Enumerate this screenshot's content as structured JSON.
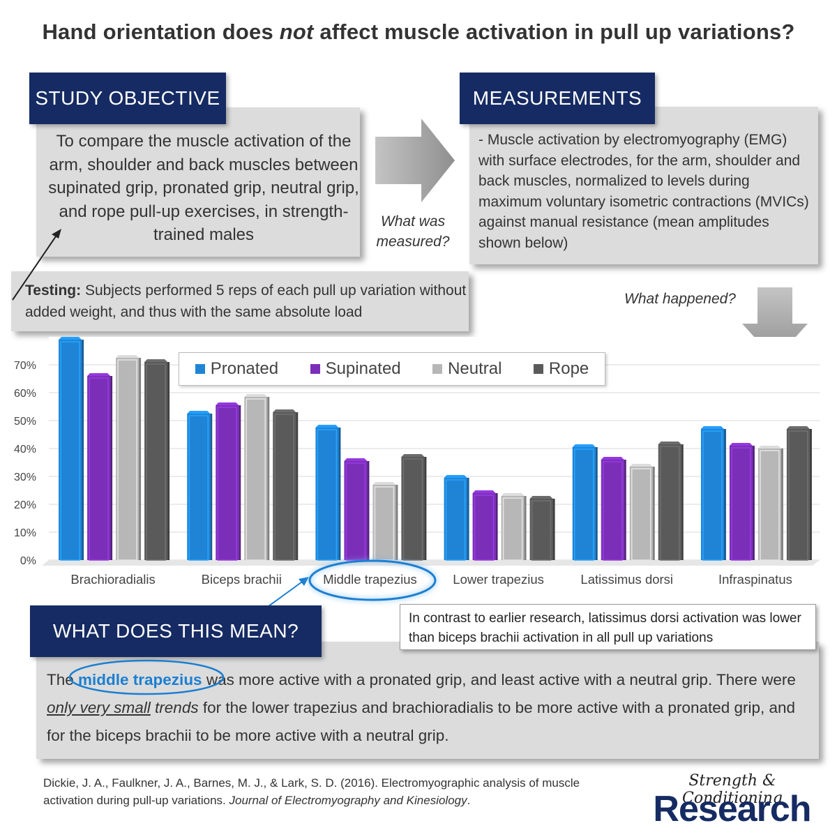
{
  "title": {
    "before": "Hand orientation does ",
    "emph": "not",
    "after": " affect muscle activation in pull up variations?"
  },
  "objective": {
    "heading": "STUDY OBJECTIVE",
    "text": "To  compare the muscle activation of the arm, shoulder and back muscles between supinated grip, pronated grip, neutral grip, and rope pull-up exercises, in strength-trained males"
  },
  "measurements": {
    "heading": "MEASUREMENTS",
    "text": "- Muscle activation by electromyography (EMG) with surface electrodes, for the arm, shoulder and back muscles, normalized to levels during maximum voluntary isometric contractions (MVICs) against manual resistance (mean amplitudes shown below)"
  },
  "questions": {
    "measured": "What was measured?",
    "happened": "What happened?"
  },
  "testing": {
    "label": "Testing:",
    "text": " Subjects performed 5 reps of each pull up variation without added weight, and thus with the same absolute load"
  },
  "chart_data": {
    "type": "bar",
    "categories": [
      "Brachioradialis",
      "Biceps brachii",
      "Middle trapezius",
      "Lower trapezius",
      "Latissimus dorsi",
      "Infraspinatus"
    ],
    "series": [
      {
        "name": "Pronated",
        "color": "#1f84d6",
        "values": [
          79,
          52.5,
          47.5,
          29.5,
          40.5,
          47
        ]
      },
      {
        "name": "Supinated",
        "color": "#7b2fb8",
        "values": [
          66,
          55.5,
          35.5,
          24,
          36,
          41
        ]
      },
      {
        "name": "Neutral",
        "color": "#b7b7b7",
        "values": [
          72.5,
          58.5,
          27,
          23,
          33.5,
          40
        ]
      },
      {
        "name": "Rope",
        "color": "#5a5a5a",
        "values": [
          71,
          53,
          37,
          22,
          41.5,
          47
        ]
      }
    ],
    "yticks": [
      "0%",
      "10%",
      "20%",
      "30%",
      "40%",
      "50%",
      "60%",
      "70%"
    ],
    "ylim": [
      0,
      80
    ],
    "highlighted_category": "Middle trapezius",
    "grid": true,
    "legend_position": "top"
  },
  "callout": "In contrast to earlier research, latissimus dorsi activation was lower than biceps brachii activation in all pull up variations",
  "meaning": {
    "heading": "WHAT DOES THIS MEAN?",
    "p1_a": "The ",
    "p1_hl": "middle trapezius",
    "p1_b": " was more active with a pronated grip, and least active with a neutral grip. There were ",
    "p1_u": "only very small",
    "p1_c": " trends",
    "p1_d": " for the lower trapezius and brachioradialis to be more active with a pronated grip, and for the biceps brachii to be more active with a neutral grip."
  },
  "citation": {
    "text": "Dickie, J. A., Faulkner, J. A., Barnes, M. J., & Lark, S. D. (2016). Electromyographic analysis of muscle activation during pull-up variations. ",
    "journal": "Journal of Electromyography and Kinesiology",
    "end": "."
  },
  "brand": {
    "line1": "Strength & Conditioning",
    "line2": "Research"
  },
  "colors": {
    "navy": "#162b63",
    "highlight": "#1c7fd1",
    "box": "#dcdcdc"
  }
}
